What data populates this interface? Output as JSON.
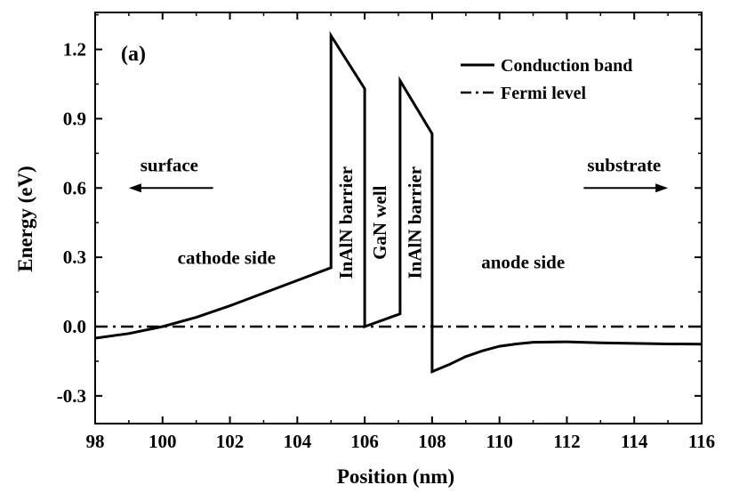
{
  "chart_data": {
    "type": "line",
    "panel_label": "(a)",
    "xlabel": "Position (nm)",
    "ylabel": "Energy (eV)",
    "xlim": [
      98,
      116
    ],
    "ylim": [
      -0.42,
      1.36
    ],
    "xticks": [
      98,
      100,
      102,
      104,
      106,
      108,
      110,
      112,
      114,
      116
    ],
    "yticks": [
      -0.3,
      0.0,
      0.3,
      0.6,
      0.9,
      1.2
    ],
    "ytick_labels": [
      "-0.3",
      "0.0",
      "0.3",
      "0.6",
      "0.9",
      "1.2"
    ],
    "grid": false,
    "legend_placement": "top-right",
    "series": [
      {
        "name": "Conduction band",
        "style": "solid",
        "points": [
          [
            98.0,
            -0.05
          ],
          [
            99.0,
            -0.03
          ],
          [
            100.0,
            0.0
          ],
          [
            101.0,
            0.04
          ],
          [
            102.0,
            0.09
          ],
          [
            103.0,
            0.145
          ],
          [
            104.0,
            0.2
          ],
          [
            105.0,
            0.255
          ],
          [
            105.0,
            1.26
          ],
          [
            106.0,
            1.03
          ],
          [
            106.0,
            0.0
          ],
          [
            107.05,
            0.055
          ],
          [
            107.05,
            1.065
          ],
          [
            108.0,
            0.835
          ],
          [
            108.0,
            -0.195
          ],
          [
            108.5,
            -0.165
          ],
          [
            109.0,
            -0.13
          ],
          [
            109.5,
            -0.105
          ],
          [
            110.0,
            -0.085
          ],
          [
            110.5,
            -0.075
          ],
          [
            111.0,
            -0.068
          ],
          [
            112.0,
            -0.066
          ],
          [
            113.0,
            -0.07
          ],
          [
            114.0,
            -0.073
          ],
          [
            115.0,
            -0.075
          ],
          [
            116.0,
            -0.076
          ]
        ]
      },
      {
        "name": "Fermi level",
        "style": "dash-dot",
        "points": [
          [
            98.0,
            0.0
          ],
          [
            116.0,
            0.0
          ]
        ]
      }
    ],
    "annotations": [
      {
        "text": "surface",
        "x": 100.2,
        "y": 0.69
      },
      {
        "text": "substrate",
        "x": 113.7,
        "y": 0.69
      },
      {
        "text": "cathode side",
        "x": 101.9,
        "y": 0.29
      },
      {
        "text": "anode side",
        "x": 110.7,
        "y": 0.27
      },
      {
        "text": "InAlN barrier",
        "x": 105.5,
        "y": 0.45,
        "rotate": -90
      },
      {
        "text": "GaN well",
        "x": 106.5,
        "y": 0.45,
        "rotate": -90
      },
      {
        "text": "InAlN barrier",
        "x": 107.55,
        "y": 0.45,
        "rotate": -90
      }
    ],
    "arrows": [
      {
        "name": "surface-arrow",
        "from": [
          101.5,
          0.6
        ],
        "to": [
          99.0,
          0.6
        ]
      },
      {
        "name": "substrate-arrow",
        "from": [
          112.5,
          0.6
        ],
        "to": [
          115.0,
          0.6
        ]
      }
    ]
  }
}
